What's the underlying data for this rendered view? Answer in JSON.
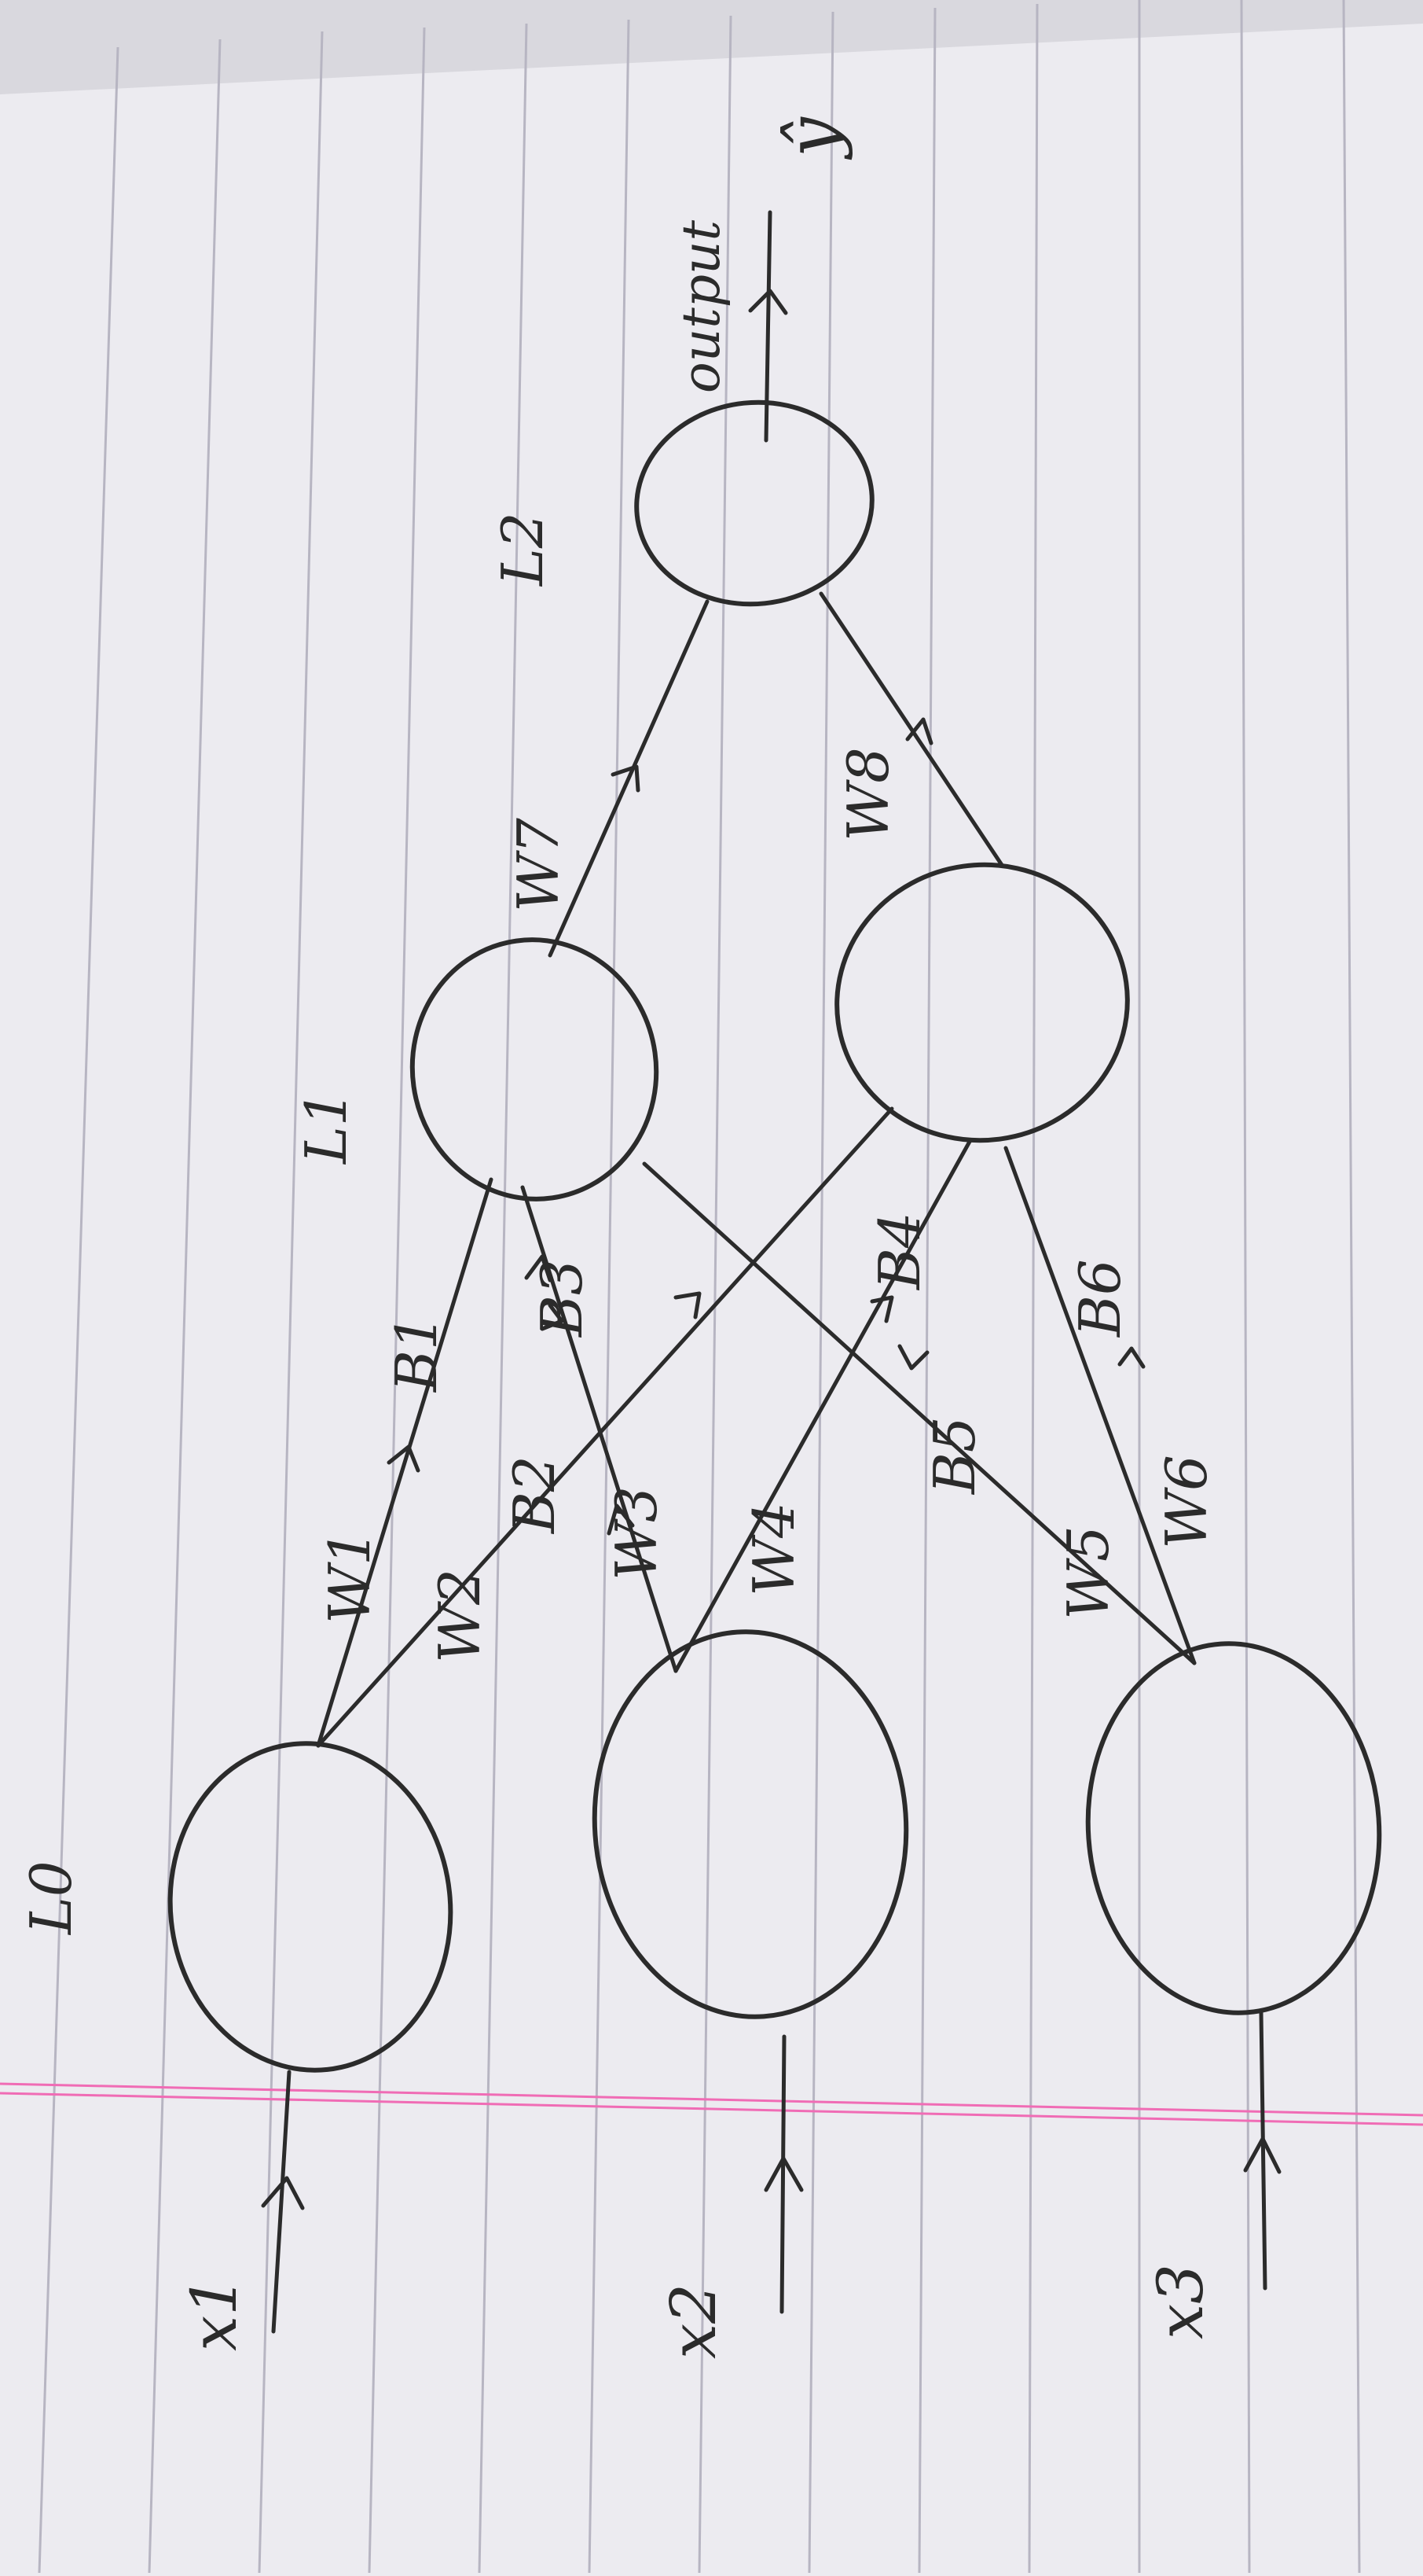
{
  "layer_labels": {
    "l0": "L0",
    "l1": "L1",
    "l2": "L2"
  },
  "inputs": [
    {
      "label": "x1"
    },
    {
      "label": "x2"
    },
    {
      "label": "x3"
    }
  ],
  "output": {
    "label": "output",
    "symbol": "ŷ"
  },
  "weights": {
    "w1": "W1",
    "w2": "W2",
    "w3": "W3",
    "w4": "W4",
    "w5": "W5",
    "w6": "W6",
    "w7": "W7",
    "w8": "W8"
  },
  "biases": {
    "b1": "B1",
    "b2": "B2",
    "b3": "B3",
    "b4": "B4",
    "b5": "B5",
    "b6": "B6"
  },
  "colors": {
    "ink": "#2b2b2b",
    "rule": "#b7b5c2",
    "margin": "#f06cb5",
    "paper": "#ecebf0"
  }
}
